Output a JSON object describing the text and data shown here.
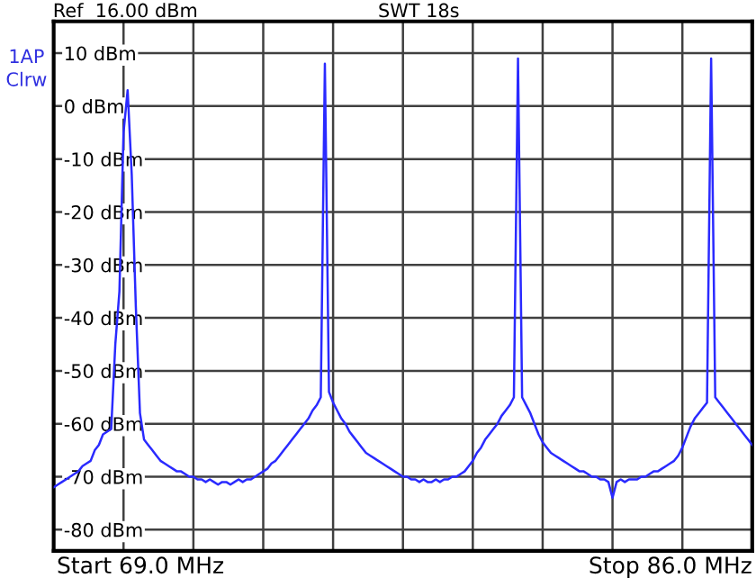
{
  "chart_data": {
    "type": "line",
    "annotations": [
      "Ref  16.00 dBm",
      "SWT 18s",
      "1AP",
      "Clrw",
      "Start 69.0 MHz",
      "Stop 86.0 MHz"
    ],
    "categories": [
      null,
      null,
      null,
      null,
      null,
      null,
      null,
      null,
      null,
      null,
      null,
      null,
      null,
      null,
      null,
      null,
      null,
      null,
      null,
      null,
      null,
      null,
      null,
      null,
      null,
      null,
      null,
      null,
      null,
      null,
      null,
      null,
      null,
      null,
      null,
      null,
      null,
      null,
      null,
      null,
      null,
      null,
      null,
      null,
      null,
      null,
      null,
      null,
      null,
      null,
      null,
      null,
      null,
      null,
      null,
      null,
      null,
      null,
      null,
      null,
      null,
      null,
      null,
      null,
      null,
      null,
      null,
      null,
      null,
      null,
      null,
      null,
      null,
      null,
      null,
      null,
      null,
      null,
      null,
      null,
      null,
      null,
      null,
      null,
      null,
      null,
      null,
      null,
      null,
      null,
      null,
      null,
      null,
      null,
      null,
      null,
      null,
      null,
      null,
      null,
      null,
      null,
      null,
      null,
      null,
      null,
      null,
      null,
      null,
      null,
      null,
      null,
      null,
      null,
      null,
      null,
      null,
      null,
      null,
      null,
      null,
      null,
      null,
      null,
      null,
      null,
      null,
      null,
      null,
      null,
      null,
      null,
      null,
      null,
      null,
      null,
      null,
      null,
      null,
      null,
      null,
      null,
      null,
      null,
      null,
      null,
      null,
      null,
      null,
      null,
      null,
      null,
      null,
      null,
      null,
      null,
      null,
      null,
      null,
      null,
      null,
      null,
      null,
      null,
      null,
      null,
      null,
      null,
      null,
      null,
      null
    ],
    "series": [
      {
        "color": "#2a2aff",
        "values": [
          -72,
          -71.5,
          -71,
          -70.5,
          -70,
          -69.5,
          -69,
          -68,
          -67.5,
          -67,
          -65,
          -64,
          -62,
          -61.5,
          -61,
          -45,
          -35,
          -5,
          3,
          -13,
          -38,
          -58,
          -63,
          -64,
          -65,
          -66,
          -67,
          -67.5,
          -68,
          -68.5,
          -69,
          -69,
          -69.5,
          -70,
          -70,
          -70.5,
          -70.5,
          -71,
          -70.5,
          -71,
          -71.5,
          -71,
          -71,
          -71.5,
          -71,
          -70.5,
          -71,
          -70.5,
          -70.5,
          -70,
          -69.5,
          -69,
          -68.5,
          -67.5,
          -67,
          -66,
          -65,
          -64,
          -63,
          -62,
          -61,
          -60,
          -59,
          -57.5,
          -56.5,
          -55,
          8,
          -54,
          -56,
          -57.5,
          -59,
          -60,
          -61.5,
          -62.5,
          -63.5,
          -64.5,
          -65.5,
          -66,
          -66.5,
          -67,
          -67.5,
          -68,
          -68.5,
          -69,
          -69.5,
          -70,
          -70,
          -70.5,
          -70.5,
          -71,
          -70.5,
          -71,
          -71,
          -70.5,
          -71,
          -70.5,
          -70.5,
          -70,
          -70,
          -69.5,
          -69,
          -68,
          -67,
          -65.5,
          -64.5,
          -63,
          -62,
          -61,
          -60,
          -58.5,
          -57.5,
          -56.5,
          -55,
          9,
          -55,
          -56.5,
          -58,
          -60,
          -62,
          -63.5,
          -64.5,
          -65.5,
          -66,
          -66.5,
          -67,
          -67.5,
          -68,
          -68.5,
          -69,
          -69,
          -69.5,
          -70,
          -70,
          -70.5,
          -70.5,
          -71,
          -74,
          -71,
          -70.5,
          -71,
          -70.5,
          -70.5,
          -70.5,
          -70,
          -70,
          -69.5,
          -69,
          -69,
          -68.5,
          -68,
          -67.5,
          -67,
          -66,
          -64.5,
          -62.5,
          -60.5,
          -59,
          -58,
          -57,
          -56,
          9,
          -55,
          -56,
          -57,
          -58,
          -59,
          -60,
          -61,
          -62,
          -63,
          -64
        ]
      }
    ],
    "ylim": [
      -84,
      16
    ],
    "yticks": [
      {
        "value": 10,
        "label": "10 dBm"
      },
      {
        "value": 0,
        "label": "0 dBm"
      },
      {
        "value": -10,
        "label": "-10 dBm"
      },
      {
        "value": -20,
        "label": "-20 dBm"
      },
      {
        "value": -30,
        "label": "-30 dBm"
      },
      {
        "value": -40,
        "label": "-40 dBm"
      },
      {
        "value": -50,
        "label": "-50 dBm"
      },
      {
        "value": -60,
        "label": "-60 dBm"
      },
      {
        "value": -70,
        "label": "-70 dBm"
      },
      {
        "value": -80,
        "label": "-80 dBm"
      }
    ],
    "grid": true,
    "legend": false,
    "marker": "none",
    "line_style": "solid"
  }
}
